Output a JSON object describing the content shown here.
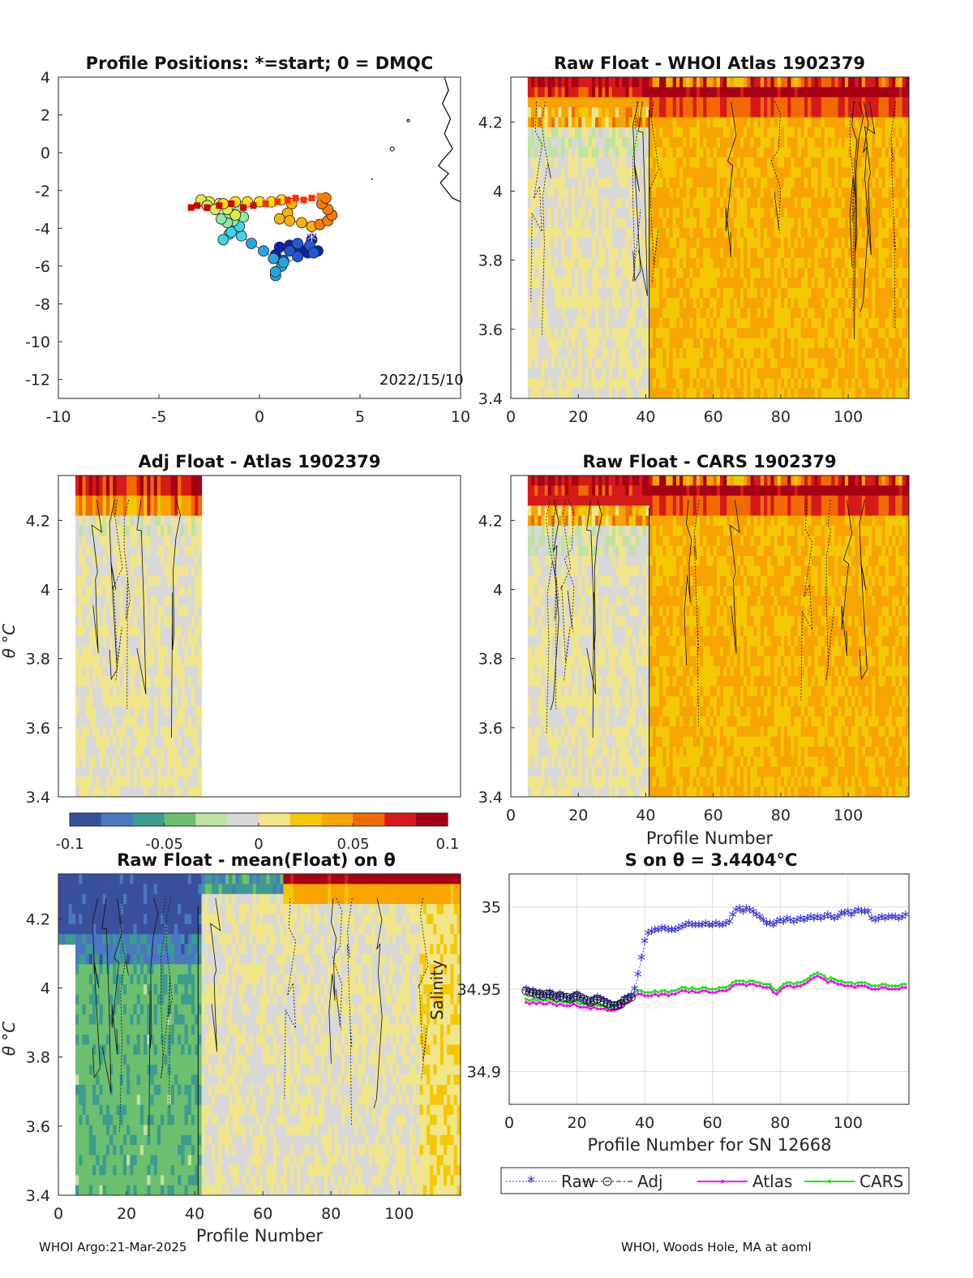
{
  "footer": {
    "left": "WHOI Argo:21-Mar-2025",
    "right": "WHOI, Woods Hole, MA at aoml"
  },
  "colors": {
    "diverging_scale": [
      "#3a4f9e",
      "#4a78c0",
      "#3d9b8f",
      "#6cbf6f",
      "#bfe3a0",
      "#d8d8d8",
      "#f1e58a",
      "#f4c800",
      "#f7a300",
      "#f06a00",
      "#d61a1a",
      "#a50016"
    ],
    "raw": "#3b3bd6",
    "adj": "#111111",
    "atlas": "#ff00ff",
    "cars": "#19e619",
    "position_track": "#ff0000"
  },
  "chart_data": [
    {
      "type": "scatter",
      "id": "positions",
      "title": "Profile Positions: *=start; 0 = DMQC",
      "annotation": "2022/15/10",
      "xlim": [
        -10,
        10
      ],
      "ylim": [
        -13,
        4
      ],
      "xticks": [
        "-10",
        "-5",
        "0",
        "5",
        "10"
      ],
      "yticks": [
        "4",
        "2",
        "0",
        "-2",
        "-4",
        "-6",
        "-8",
        "-10",
        "-12"
      ],
      "points": [
        [
          2.6,
          -4.6
        ],
        [
          2.9,
          -5.2
        ],
        [
          2.4,
          -5.3
        ],
        [
          2.0,
          -5.1
        ],
        [
          1.5,
          -4.9
        ],
        [
          1.0,
          -5.0
        ],
        [
          0.8,
          -5.4
        ],
        [
          1.2,
          -5.7
        ],
        [
          1.5,
          -5.2
        ],
        [
          1.9,
          -4.8
        ],
        [
          2.5,
          -4.9
        ],
        [
          2.7,
          -5.3
        ],
        [
          1.9,
          -5.5
        ],
        [
          1.1,
          -6.0
        ],
        [
          0.8,
          -6.5
        ],
        [
          0.8,
          -6.3
        ],
        [
          1.2,
          -5.8
        ],
        [
          0.7,
          -5.6
        ],
        [
          0.2,
          -5.2
        ],
        [
          -0.4,
          -4.8
        ],
        [
          -0.9,
          -4.4
        ],
        [
          -1.2,
          -4.0
        ],
        [
          -1.5,
          -4.3
        ],
        [
          -1.8,
          -4.6
        ],
        [
          -1.4,
          -4.2
        ],
        [
          -1.0,
          -3.9
        ],
        [
          -1.3,
          -3.6
        ],
        [
          -1.6,
          -3.7
        ],
        [
          -1.9,
          -3.5
        ],
        [
          -1.5,
          -3.2
        ],
        [
          -1.0,
          -3.0
        ],
        [
          -0.8,
          -3.4
        ],
        [
          -1.2,
          -3.3
        ],
        [
          -1.6,
          -3.0
        ],
        [
          -2.0,
          -2.7
        ],
        [
          -2.5,
          -2.6
        ],
        [
          -2.9,
          -2.5
        ],
        [
          -2.6,
          -2.8
        ],
        [
          -2.2,
          -3.0
        ],
        [
          -1.8,
          -2.7
        ],
        [
          -1.2,
          -2.6
        ],
        [
          -0.6,
          -2.6
        ],
        [
          0.0,
          -2.6
        ],
        [
          0.6,
          -2.6
        ],
        [
          1.1,
          -2.5
        ],
        [
          1.6,
          -2.7
        ],
        [
          1.4,
          -3.2
        ],
        [
          1.0,
          -3.5
        ],
        [
          1.5,
          -3.6
        ],
        [
          2.1,
          -3.7
        ],
        [
          2.6,
          -3.9
        ],
        [
          3.0,
          -3.8
        ],
        [
          3.4,
          -3.6
        ],
        [
          3.6,
          -3.3
        ],
        [
          3.4,
          -3.0
        ],
        [
          3.1,
          -2.7
        ],
        [
          3.3,
          -2.4
        ],
        [
          3.0,
          -2.3
        ],
        [
          2.6,
          -2.4
        ],
        [
          2.2,
          -2.5
        ],
        [
          1.8,
          -2.4
        ],
        [
          1.4,
          -2.5
        ],
        [
          0.9,
          -2.6
        ],
        [
          0.3,
          -2.7
        ],
        [
          -0.3,
          -2.8
        ],
        [
          -0.8,
          -2.9
        ],
        [
          -1.4,
          -2.7
        ],
        [
          -2.0,
          -2.8
        ],
        [
          -2.6,
          -2.9
        ],
        [
          -3.1,
          -2.8
        ],
        [
          -3.4,
          -2.9
        ]
      ]
    },
    {
      "type": "heatmap",
      "id": "raw_atlas",
      "title": "Raw Float - WHOI Atlas  1902379",
      "xlim": [
        0,
        118
      ],
      "ylim": [
        3.4,
        4.33
      ],
      "xticks": [
        "0",
        "20",
        "40",
        "60",
        "80",
        "100"
      ],
      "yticks": [
        "4.2",
        "4",
        "3.8",
        "3.6",
        "3.4"
      ],
      "xlabel": "",
      "mode": "raw_atlas"
    },
    {
      "type": "heatmap",
      "id": "adj_atlas",
      "title": "Adj Float - Atlas  1902379",
      "xlim": [
        0,
        118
      ],
      "ylim": [
        3.4,
        4.33
      ],
      "xticks": [],
      "yticks": [
        "4.2",
        "4",
        "3.8",
        "3.6",
        "3.4"
      ],
      "ylabel": "θ °C",
      "mode": "adj_atlas"
    },
    {
      "type": "heatmap",
      "id": "raw_cars",
      "title": "Raw Float - CARS  1902379",
      "xlim": [
        0,
        118
      ],
      "ylim": [
        3.4,
        4.33
      ],
      "xticks": [
        "0",
        "20",
        "40",
        "60",
        "80",
        "100"
      ],
      "yticks": [
        "4.2",
        "4",
        "3.8",
        "3.6",
        "3.4"
      ],
      "xlabel": "Profile Number",
      "mode": "raw_cars"
    },
    {
      "type": "heatmap",
      "id": "raw_mean",
      "title": "Raw Float - mean(Float) on θ",
      "xlim": [
        0,
        118
      ],
      "ylim": [
        3.4,
        4.33
      ],
      "xticks": [
        "0",
        "20",
        "40",
        "60",
        "80",
        "100"
      ],
      "yticks": [
        "4.2",
        "4",
        "3.8",
        "3.6",
        "3.4"
      ],
      "xlabel": "Profile Number",
      "ylabel": "θ °C",
      "mode": "raw_mean"
    },
    {
      "type": "colorbar",
      "id": "colorbar",
      "range": [
        -0.1,
        0.1
      ],
      "ticks": [
        "-0.1",
        "-0.05",
        "0",
        "0.05",
        "0.1"
      ]
    },
    {
      "type": "line",
      "id": "salinity",
      "title": "S on θ = 3.4404°C",
      "xlabel": "Profile Number for SN 12668",
      "ylabel": "Salinity",
      "xlim": [
        0,
        118
      ],
      "ylim": [
        34.88,
        35.02
      ],
      "xticks": [
        "0",
        "20",
        "40",
        "60",
        "80",
        "100"
      ],
      "yticks": [
        "34.9",
        "34.95",
        "35"
      ],
      "grid": true,
      "legend": "bottom",
      "series": [
        {
          "name": "Raw",
          "values_from": 5,
          "values": [
            34.949,
            34.947,
            34.948,
            34.946,
            34.947,
            34.945,
            34.946,
            34.947,
            34.945,
            34.944,
            34.946,
            34.945,
            34.944,
            34.943,
            34.945,
            34.946,
            34.944,
            34.943,
            34.942,
            34.941,
            34.943,
            34.944,
            34.943,
            34.942,
            34.941,
            34.94,
            34.939,
            34.94,
            34.941,
            34.943,
            34.944,
            34.945,
            34.949,
            34.958,
            34.968,
            34.978,
            34.983,
            34.984,
            34.985,
            34.985,
            34.986,
            34.986,
            34.985,
            34.985,
            34.985,
            34.986,
            34.987,
            34.988,
            34.989,
            34.988,
            34.988,
            34.988,
            34.988,
            34.989,
            34.988,
            34.988,
            34.989,
            34.988,
            34.988,
            34.989,
            34.99,
            34.994,
            34.997,
            34.998,
            34.996,
            34.998,
            34.997,
            34.996,
            34.994,
            34.993,
            34.991,
            34.989,
            34.989,
            34.988,
            34.99,
            34.991,
            34.99,
            34.992,
            34.991,
            34.99,
            34.991,
            34.992,
            34.991,
            34.992,
            34.993,
            34.992,
            34.993,
            34.992,
            34.993,
            34.994,
            34.993,
            34.992,
            34.993,
            34.995,
            34.995,
            34.996,
            34.994,
            34.996,
            34.997,
            34.996,
            34.996,
            34.996,
            34.992,
            34.991,
            34.992,
            34.993,
            34.992,
            34.993,
            34.993,
            34.993,
            34.992,
            34.993,
            34.994
          ]
        },
        {
          "name": "Adj",
          "values_from": 5,
          "values": [
            34.949,
            34.948,
            34.948,
            34.947,
            34.947,
            34.946,
            34.947,
            34.947,
            34.946,
            34.945,
            34.946,
            34.945,
            34.945,
            34.944,
            34.945,
            34.946,
            34.945,
            34.944,
            34.943,
            34.942,
            34.943,
            34.944,
            34.943,
            34.942,
            34.941,
            34.94,
            34.94,
            34.94,
            34.941,
            34.943,
            34.944,
            34.945
          ]
        },
        {
          "name": "Atlas",
          "values_from": 5,
          "values": [
            34.942,
            34.941,
            34.942,
            34.941,
            34.942,
            34.941,
            34.941,
            34.942,
            34.941,
            34.94,
            34.941,
            34.94,
            34.94,
            34.94,
            34.941,
            34.94,
            34.939,
            34.939,
            34.939,
            34.938,
            34.939,
            34.938,
            34.938,
            34.938,
            34.937,
            34.937,
            34.937,
            34.938,
            34.939,
            34.941,
            34.942,
            34.944,
            34.946,
            34.947,
            34.947,
            34.946,
            34.946,
            34.946,
            34.947,
            34.946,
            34.947,
            34.947,
            34.946,
            34.947,
            34.947,
            34.948,
            34.949,
            34.949,
            34.948,
            34.949,
            34.948,
            34.948,
            34.949,
            34.949,
            34.948,
            34.948,
            34.948,
            34.949,
            34.949,
            34.949,
            34.95,
            34.952,
            34.953,
            34.953,
            34.953,
            34.952,
            34.953,
            34.953,
            34.952,
            34.952,
            34.951,
            34.951,
            34.951,
            34.948,
            34.947,
            34.949,
            34.951,
            34.952,
            34.952,
            34.951,
            34.952,
            34.952,
            34.953,
            34.954,
            34.956,
            34.957,
            34.958,
            34.957,
            34.956,
            34.954,
            34.955,
            34.954,
            34.953,
            34.953,
            34.952,
            34.952,
            34.952,
            34.951,
            34.952,
            34.952,
            34.952,
            34.951,
            34.95,
            34.95,
            34.95,
            34.951,
            34.951,
            34.95,
            34.95,
            34.95,
            34.95,
            34.951,
            34.951
          ]
        },
        {
          "name": "CARS",
          "values_from": 5,
          "values": [
            34.944,
            34.943,
            34.944,
            34.943,
            34.944,
            34.943,
            34.943,
            34.944,
            34.943,
            34.942,
            34.943,
            34.942,
            34.942,
            34.942,
            34.943,
            34.942,
            34.941,
            34.941,
            34.941,
            34.94,
            34.941,
            34.94,
            34.94,
            34.94,
            34.939,
            34.939,
            34.939,
            34.94,
            34.941,
            34.943,
            34.944,
            34.946,
            34.948,
            34.949,
            34.949,
            34.948,
            34.948,
            34.948,
            34.949,
            34.948,
            34.949,
            34.949,
            34.948,
            34.949,
            34.949,
            34.95,
            34.951,
            34.951,
            34.95,
            34.951,
            34.95,
            34.95,
            34.951,
            34.951,
            34.95,
            34.95,
            34.95,
            34.951,
            34.951,
            34.951,
            34.952,
            34.954,
            34.955,
            34.955,
            34.955,
            34.954,
            34.955,
            34.955,
            34.954,
            34.954,
            34.953,
            34.953,
            34.953,
            34.95,
            34.949,
            34.951,
            34.953,
            34.954,
            34.954,
            34.953,
            34.954,
            34.954,
            34.955,
            34.956,
            34.958,
            34.959,
            34.96,
            34.959,
            34.958,
            34.956,
            34.957,
            34.956,
            34.955,
            34.955,
            34.954,
            34.954,
            34.954,
            34.953,
            34.954,
            34.954,
            34.954,
            34.953,
            34.952,
            34.952,
            34.952,
            34.953,
            34.953,
            34.952,
            34.952,
            34.952,
            34.952,
            34.953,
            34.953
          ]
        }
      ]
    }
  ]
}
